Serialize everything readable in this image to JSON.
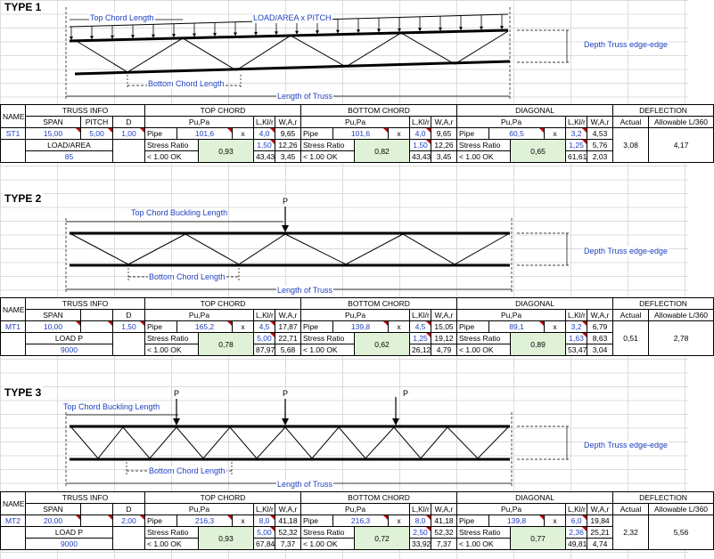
{
  "headers": {
    "name": "NAME",
    "truss_info": "TRUSS INFO",
    "top": "TOP CHORD",
    "bottom": "BOTTOM CHORD",
    "diag": "DIAGONAL",
    "defl": "DEFLECTION",
    "span": "SPAN",
    "pitch": "PITCH",
    "d": "D",
    "pupa": "Pu,Pa",
    "lklr": "L,Kl/r",
    "war": "W,A,r",
    "actual": "Actual",
    "allow": "Allowable L/360"
  },
  "labels": {
    "pipe": "Pipe",
    "x": "x",
    "stress_ratio": "Stress Ratio",
    "ok": "< 1.00 OK"
  },
  "type1": {
    "title": "TYPE 1",
    "diagram": {
      "top_chord_length": "Top Chord Length",
      "load_label": "LOAD/AREA x PITCH",
      "depth": "Depth Truss edge-edge",
      "bottom_chord_length": "Bottom Chord Length",
      "length": "Length of Truss"
    },
    "row": {
      "name": "ST1",
      "span": "15,00",
      "pitch": "5,00",
      "d": "1,00",
      "load_label": "LOAD/AREA",
      "load_value": "85",
      "top": {
        "pipe": "101,6",
        "l": "4,0",
        "w": "9,65",
        "kl": "1,50",
        "a": "12,26",
        "ratio": "0,93",
        "klr": "43,43",
        "r": "3,45"
      },
      "bottom": {
        "pipe": "101,6",
        "l": "4,0",
        "w": "9,65",
        "kl": "1,50",
        "a": "12,26",
        "ratio": "0,82",
        "klr": "43,43",
        "r": "3,45"
      },
      "diag": {
        "pipe": "60,5",
        "l": "3,2",
        "w": "4,53",
        "kl": "1,25",
        "a": "5,76",
        "ratio": "0,65",
        "klr": "61,61",
        "r": "2,03"
      },
      "actual": "3,08",
      "allow": "4,17"
    }
  },
  "type2": {
    "title": "TYPE 2",
    "diagram": {
      "top_chord_length": "Top Chord Buckling Length",
      "load_p": "P",
      "depth": "Depth Truss edge-edge",
      "bottom_chord_length": "Bottom Chord Length",
      "length": "Length of Truss"
    },
    "row": {
      "name": "MT1",
      "span": "10,00",
      "pitch": "",
      "d": "1,50",
      "load_label": "LOAD P",
      "load_value": "9000",
      "top": {
        "pipe": "165,2",
        "l": "4,5",
        "w": "17,87",
        "kl": "5,00",
        "a": "22,71",
        "ratio": "0,78",
        "klr": "87,97",
        "r": "5,68"
      },
      "bottom": {
        "pipe": "139,8",
        "l": "4,5",
        "w": "15,05",
        "kl": "1,25",
        "a": "19,12",
        "ratio": "0,62",
        "klr": "26,12",
        "r": "4,79"
      },
      "diag": {
        "pipe": "89,1",
        "l": "3,2",
        "w": "6,79",
        "kl": "1,63",
        "a": "8,63",
        "ratio": "0,89",
        "klr": "53,47",
        "r": "3,04"
      },
      "actual": "0,51",
      "allow": "2,78"
    }
  },
  "type3": {
    "title": "TYPE 3",
    "diagram": {
      "top_chord_length": "Top Chord Buckling Length",
      "load_p": "P",
      "depth": "Depth Truss edge-edge",
      "bottom_chord_length": "Bottom Chord Length",
      "length": "Length of Truss"
    },
    "row": {
      "name": "MT2",
      "span": "20,00",
      "pitch": "",
      "d": "2,00",
      "load_label": "LOAD P",
      "load_value": "9000",
      "top": {
        "pipe": "216,3",
        "l": "8,0",
        "w": "41,18",
        "kl": "5,00",
        "a": "52,32",
        "ratio": "0,93",
        "klr": "67,84",
        "r": "7,37"
      },
      "bottom": {
        "pipe": "216,3",
        "l": "8,0",
        "w": "41,18",
        "kl": "2,50",
        "a": "52,32",
        "ratio": "0,72",
        "klr": "33,92",
        "r": "7,37"
      },
      "diag": {
        "pipe": "139,8",
        "l": "6,0",
        "w": "19,84",
        "kl": "2,36",
        "a": "25,21",
        "ratio": "0,77",
        "klr": "49,81",
        "r": "4,74"
      },
      "actual": "2,32",
      "allow": "5,56"
    }
  }
}
